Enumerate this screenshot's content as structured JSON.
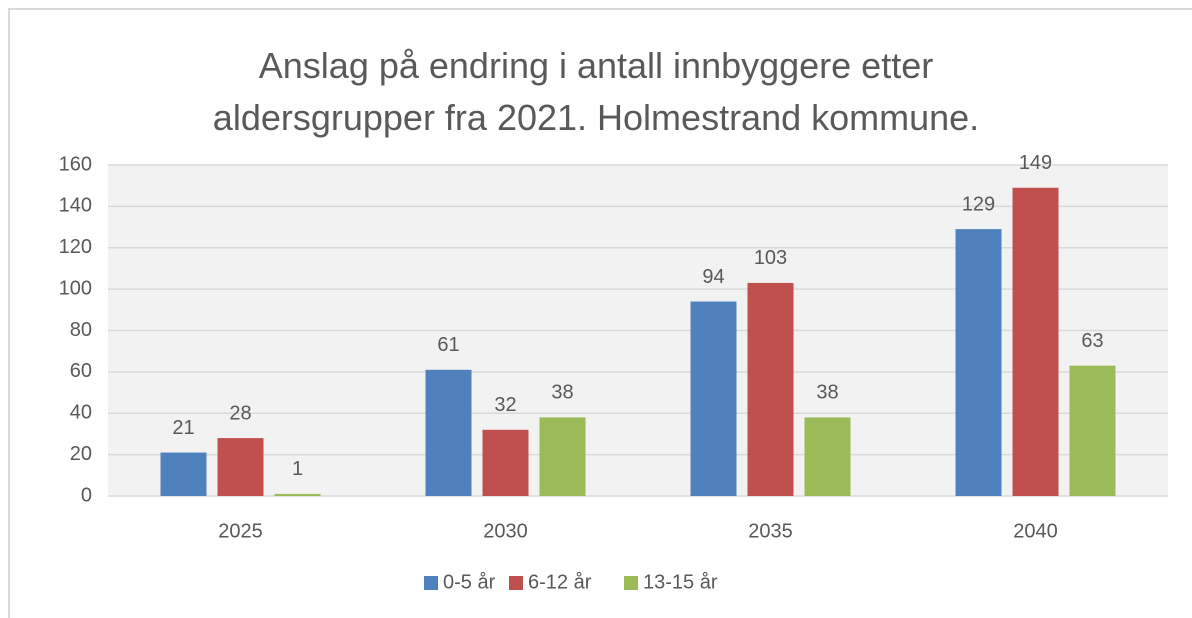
{
  "chart_data": {
    "type": "bar",
    "title": "Anslag på endring i antall innbyggere etter aldersgrupper fra 2021. Holmestrand kommune.",
    "categories": [
      "2025",
      "2030",
      "2035",
      "2040"
    ],
    "series": [
      {
        "name": "0-5 år",
        "color": "#4f81bd",
        "values": [
          21,
          61,
          94,
          129
        ]
      },
      {
        "name": "6-12 år",
        "color": "#c0504d",
        "values": [
          28,
          32,
          103,
          149
        ]
      },
      {
        "name": "13-15 år",
        "color": "#9bbb59",
        "values": [
          1,
          38,
          38,
          63
        ]
      }
    ],
    "ylim": [
      0,
      160
    ],
    "yticks": [
      0,
      20,
      40,
      60,
      80,
      100,
      120,
      140,
      160
    ],
    "grid": true,
    "legend": "bottom"
  }
}
